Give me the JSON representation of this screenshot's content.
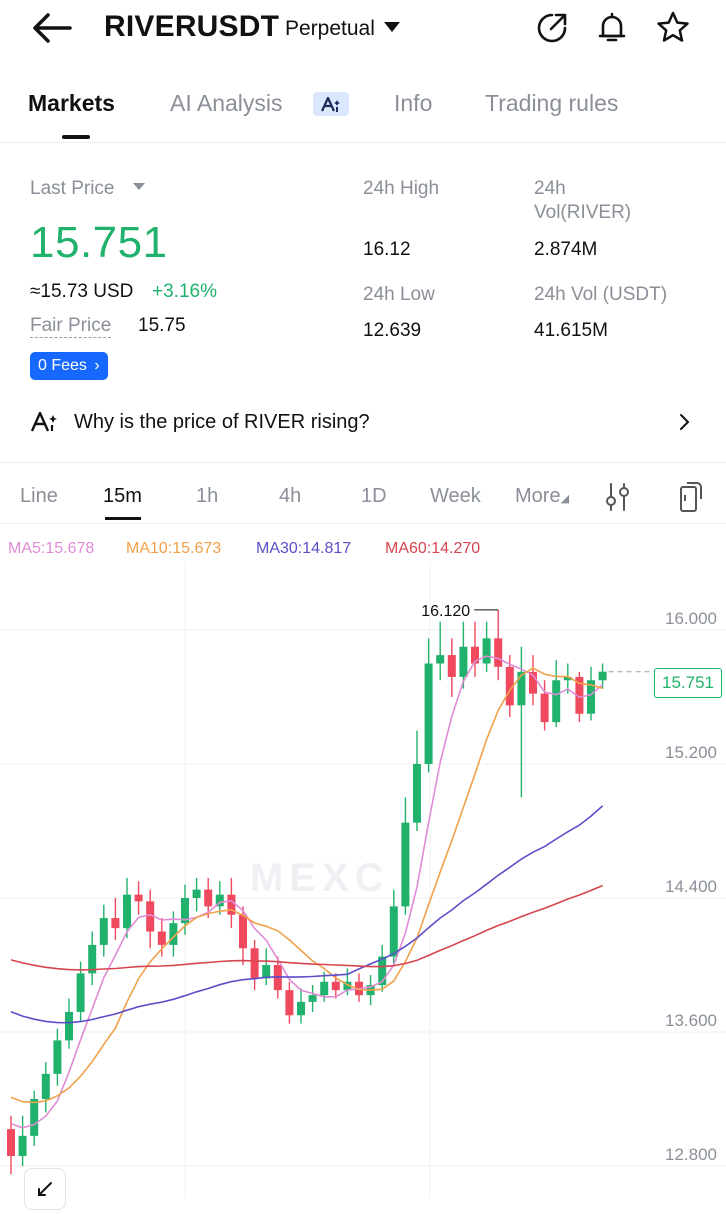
{
  "header": {
    "symbol": "RIVERUSDT",
    "contract_type": "Perpetual"
  },
  "tabs": [
    {
      "label": "Markets",
      "active": true
    },
    {
      "label": "AI Analysis",
      "active": false
    },
    {
      "label": "Info",
      "active": false
    },
    {
      "label": "Trading rules",
      "active": false
    }
  ],
  "price": {
    "last_price_label": "Last Price",
    "last_price": "15.751",
    "usd_equiv": "≈15.73 USD",
    "change_pct": "+3.16%",
    "fair_price_label": "Fair Price",
    "fair_price": "15.75",
    "fees_badge": "0 Fees",
    "high_label": "24h High",
    "high": "16.12",
    "low_label": "24h Low",
    "low": "12.639",
    "vol_base_label_1": "24h",
    "vol_base_label_2": "Vol(RIVER)",
    "vol_base": "2.874M",
    "vol_quote_label": "24h Vol (USDT)",
    "vol_quote": "41.615M"
  },
  "insight": {
    "text": "Why is the price of RIVER rising?"
  },
  "intervals": [
    {
      "label": "Line",
      "active": false
    },
    {
      "label": "15m",
      "active": true
    },
    {
      "label": "1h",
      "active": false
    },
    {
      "label": "4h",
      "active": false
    },
    {
      "label": "1D",
      "active": false
    },
    {
      "label": "Week",
      "active": false
    },
    {
      "label": "More",
      "active": false
    }
  ],
  "ma_legend": {
    "ma5": "MA5:15.678",
    "ma10": "MA10:15.673",
    "ma30": "MA30:14.817",
    "ma60": "MA60:14.270"
  },
  "colors": {
    "up": "#20b26c",
    "down": "#f0485d",
    "ma5": "#e08bd6",
    "ma10": "#f0a14a",
    "ma30": "#5b4fc9",
    "ma60": "#d6454f",
    "accent": "#1668ff"
  },
  "chart_data": {
    "type": "candlestick",
    "y_axis_ticks": [
      "16.000",
      "15.200",
      "14.400",
      "13.600",
      "12.800"
    ],
    "ylim": [
      12.75,
      16.45
    ],
    "current_price_tag": "15.751",
    "high_marker": "16.120",
    "watermark": "MEXC",
    "candles": [
      [
        13.02,
        12.86,
        13.1,
        12.75
      ],
      [
        12.86,
        12.98,
        13.1,
        12.8
      ],
      [
        12.98,
        13.2,
        13.25,
        12.92
      ],
      [
        13.2,
        13.35,
        13.42,
        13.12
      ],
      [
        13.35,
        13.55,
        13.62,
        13.28
      ],
      [
        13.55,
        13.72,
        13.8,
        13.5
      ],
      [
        13.72,
        13.95,
        14.02,
        13.66
      ],
      [
        13.95,
        14.12,
        14.2,
        13.88
      ],
      [
        14.12,
        14.28,
        14.36,
        14.05
      ],
      [
        14.28,
        14.22,
        14.4,
        14.15
      ],
      [
        14.22,
        14.42,
        14.52,
        14.16
      ],
      [
        14.42,
        14.38,
        14.5,
        14.3
      ],
      [
        14.38,
        14.2,
        14.45,
        14.1
      ],
      [
        14.2,
        14.12,
        14.28,
        14.05
      ],
      [
        14.12,
        14.25,
        14.32,
        14.05
      ],
      [
        14.25,
        14.4,
        14.48,
        14.18
      ],
      [
        14.4,
        14.45,
        14.52,
        14.32
      ],
      [
        14.45,
        14.35,
        14.52,
        14.28
      ],
      [
        14.35,
        14.42,
        14.5,
        14.3
      ],
      [
        14.42,
        14.3,
        14.52,
        14.22
      ],
      [
        14.3,
        14.1,
        14.35,
        14.0
      ],
      [
        14.1,
        13.92,
        14.15,
        13.85
      ],
      [
        13.92,
        14.0,
        14.1,
        13.88
      ],
      [
        14.0,
        13.85,
        14.05,
        13.8
      ],
      [
        13.85,
        13.7,
        13.9,
        13.65
      ],
      [
        13.7,
        13.78,
        13.86,
        13.65
      ],
      [
        13.78,
        13.82,
        13.88,
        13.72
      ],
      [
        13.82,
        13.9,
        13.96,
        13.78
      ],
      [
        13.9,
        13.85,
        13.95,
        13.8
      ],
      [
        13.85,
        13.9,
        13.98,
        13.82
      ],
      [
        13.9,
        13.82,
        13.95,
        13.78
      ],
      [
        13.82,
        13.88,
        13.94,
        13.76
      ],
      [
        13.88,
        14.05,
        14.12,
        13.84
      ],
      [
        14.05,
        14.35,
        14.45,
        14.0
      ],
      [
        14.35,
        14.85,
        15.0,
        14.3
      ],
      [
        14.85,
        15.2,
        15.4,
        14.8
      ],
      [
        15.2,
        15.8,
        15.95,
        15.15
      ],
      [
        15.8,
        15.85,
        16.05,
        15.7
      ],
      [
        15.85,
        15.72,
        15.95,
        15.6
      ],
      [
        15.72,
        15.9,
        16.05,
        15.65
      ],
      [
        15.9,
        15.8,
        16.05,
        15.72
      ],
      [
        15.8,
        15.95,
        16.05,
        15.75
      ],
      [
        15.95,
        15.78,
        16.12,
        15.7
      ],
      [
        15.78,
        15.55,
        15.85,
        15.48
      ],
      [
        15.55,
        15.75,
        15.9,
        15.0
      ],
      [
        15.75,
        15.62,
        15.85,
        15.55
      ],
      [
        15.62,
        15.45,
        15.7,
        15.4
      ],
      [
        15.45,
        15.7,
        15.82,
        15.42
      ],
      [
        15.7,
        15.72,
        15.8,
        15.62
      ],
      [
        15.72,
        15.5,
        15.75,
        15.45
      ],
      [
        15.5,
        15.7,
        15.78,
        15.46
      ],
      [
        15.7,
        15.751,
        15.8,
        15.65
      ]
    ]
  }
}
